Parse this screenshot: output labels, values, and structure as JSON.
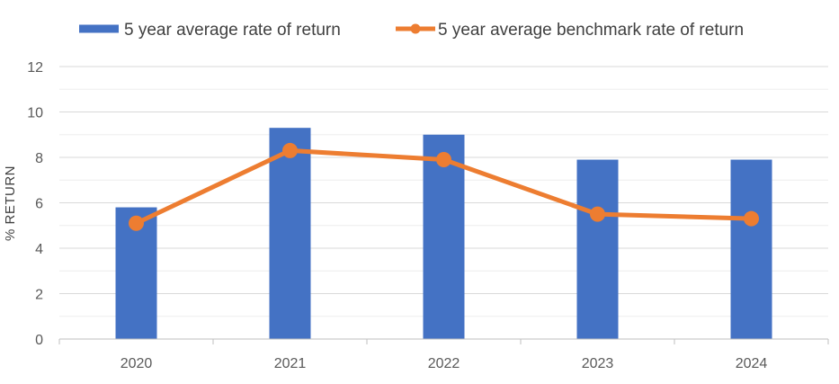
{
  "chart_data": {
    "type": "bar",
    "title": "",
    "xlabel": "",
    "ylabel": "% RETURN",
    "categories": [
      "2020",
      "2021",
      "2022",
      "2023",
      "2024"
    ],
    "ylim": [
      0,
      12
    ],
    "yticks": [
      0,
      2,
      4,
      6,
      8,
      10,
      12
    ],
    "grid": true,
    "legend_position": "top",
    "series": [
      {
        "name": "5 year average rate of return",
        "type": "bar",
        "color": "#4472C4",
        "values": [
          5.8,
          9.3,
          9.0,
          7.9,
          7.9
        ]
      },
      {
        "name": "5 year average benchmark rate of return",
        "type": "line",
        "color": "#ED7D31",
        "values": [
          5.1,
          8.3,
          7.9,
          5.5,
          5.3
        ]
      }
    ]
  }
}
